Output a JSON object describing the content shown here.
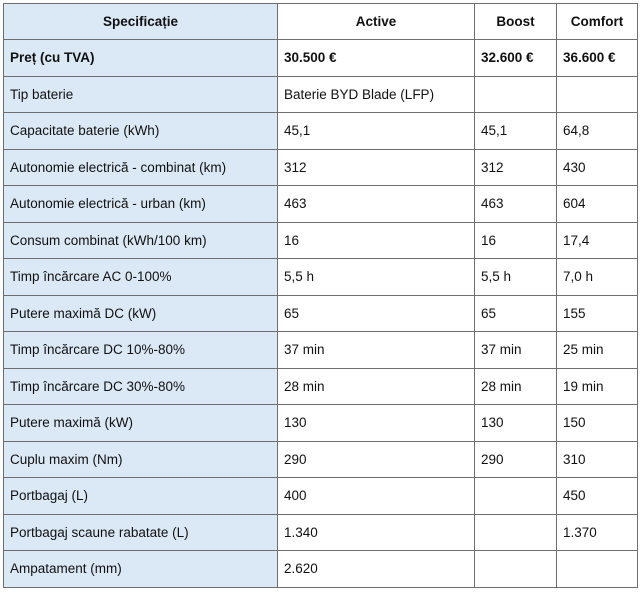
{
  "table": {
    "headers": [
      "Specificație",
      "Active",
      "Boost",
      "Comfort"
    ],
    "rows": [
      [
        "Preț (cu TVA)",
        "30.500 €",
        "32.600 €",
        "36.600 €"
      ],
      [
        "Tip baterie",
        "Baterie BYD Blade (LFP)",
        "",
        ""
      ],
      [
        "Capacitate baterie (kWh)",
        "45,1",
        "45,1",
        "64,8"
      ],
      [
        "Autonomie electrică - combinat (km)",
        "312",
        "312",
        "430"
      ],
      [
        "Autonomie electrică - urban (km)",
        "463",
        "463",
        "604"
      ],
      [
        "Consum combinat (kWh/100 km)",
        "16",
        "16",
        "17,4"
      ],
      [
        "Timp încărcare AC 0-100%",
        "5,5 h",
        "5,5 h",
        "7,0 h"
      ],
      [
        "Putere maximă DC (kW)",
        "65",
        "65",
        "155"
      ],
      [
        "Timp încărcare DC 10%-80%",
        "37 min",
        "37 min",
        "25 min"
      ],
      [
        "Timp încărcare DC 30%-80%",
        "28 min",
        "28 min",
        "19 min"
      ],
      [
        "Putere maximă (kW)",
        "130",
        "130",
        "150"
      ],
      [
        "Cuplu maxim (Nm)",
        "290",
        "290",
        "310"
      ],
      [
        "Portbagaj (L)",
        "400",
        "",
        "450"
      ],
      [
        "Portbagaj scaune rabatate (L)",
        "1.340",
        "",
        "1.370"
      ],
      [
        "Ampatament (mm)",
        "2.620",
        "",
        ""
      ]
    ]
  },
  "colors": {
    "label_background": "#dbe8f5",
    "border": "#6f6f6f"
  }
}
